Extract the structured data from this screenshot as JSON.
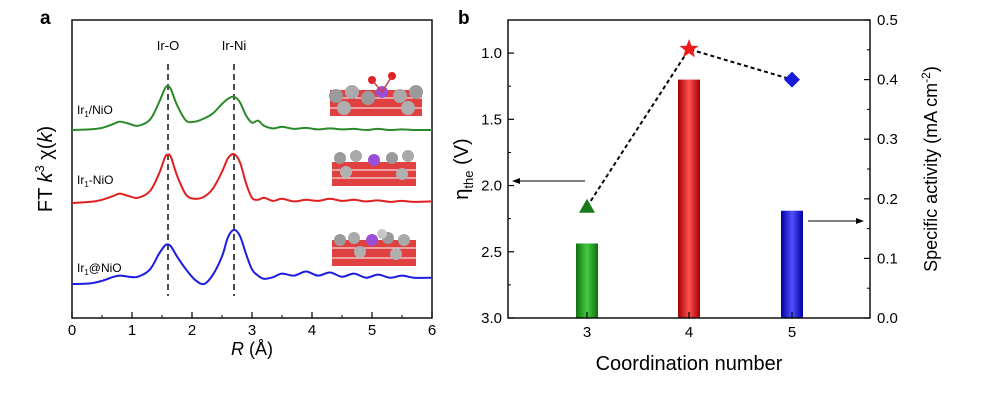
{
  "chart_data": [
    {
      "panel": "a",
      "type": "line",
      "title": "",
      "xlabel_italic": "R",
      "xlabel_unit": " (Å)",
      "ylabel_pre": "FT ",
      "ylabel_k": "k",
      "ylabel_exp": "3",
      "ylabel_chi": " χ(",
      "ylabel_post": ")",
      "xlim": [
        0,
        6
      ],
      "xticks": [
        "0",
        "1",
        "2",
        "3",
        "4",
        "5",
        "6"
      ],
      "reference_lines": [
        {
          "label": "Ir-O",
          "x": 1.6
        },
        {
          "label": "Ir-Ni",
          "x": 2.7
        }
      ],
      "series": [
        {
          "name_pre": "Ir",
          "name_sub": "1",
          "name_post": "/NiO",
          "color": "#2a8a2a",
          "x": [
            0.0,
            0.3,
            0.5,
            0.7,
            0.8,
            0.95,
            1.1,
            1.3,
            1.45,
            1.55,
            1.6,
            1.65,
            1.75,
            1.9,
            2.05,
            2.2,
            2.35,
            2.5,
            2.6,
            2.7,
            2.8,
            2.9,
            3.0,
            3.1,
            3.2,
            3.35,
            3.5,
            3.7,
            3.9,
            4.1,
            4.3,
            4.5,
            4.7,
            4.9,
            5.1,
            5.3,
            5.5,
            5.7,
            6.0
          ],
          "y": [
            0.02,
            0.03,
            0.06,
            0.14,
            0.18,
            0.14,
            0.1,
            0.22,
            0.55,
            0.82,
            0.86,
            0.8,
            0.5,
            0.2,
            0.18,
            0.24,
            0.34,
            0.52,
            0.62,
            0.66,
            0.55,
            0.3,
            0.16,
            0.2,
            0.1,
            0.05,
            0.08,
            0.04,
            0.06,
            0.03,
            0.05,
            0.03,
            0.04,
            0.02,
            0.04,
            0.02,
            0.03,
            0.02,
            0.02
          ]
        },
        {
          "name_pre": "Ir",
          "name_sub": "1",
          "name_post": "-NiO",
          "color": "#e02020",
          "x": [
            0.0,
            0.3,
            0.5,
            0.7,
            0.8,
            0.95,
            1.1,
            1.3,
            1.45,
            1.55,
            1.6,
            1.65,
            1.75,
            1.9,
            2.05,
            2.2,
            2.35,
            2.5,
            2.6,
            2.7,
            2.8,
            2.9,
            3.0,
            3.1,
            3.2,
            3.35,
            3.5,
            3.7,
            3.9,
            4.1,
            4.3,
            4.5,
            4.7,
            4.9,
            5.1,
            5.3,
            5.5,
            5.7,
            6.0
          ],
          "y": [
            0.02,
            0.04,
            0.08,
            0.16,
            0.2,
            0.15,
            0.12,
            0.25,
            0.58,
            0.9,
            0.95,
            0.9,
            0.55,
            0.18,
            0.1,
            0.14,
            0.3,
            0.62,
            0.88,
            0.96,
            0.8,
            0.4,
            0.12,
            0.08,
            0.12,
            0.06,
            0.1,
            0.05,
            0.08,
            0.06,
            0.1,
            0.06,
            0.08,
            0.05,
            0.07,
            0.04,
            0.06,
            0.04,
            0.05
          ]
        },
        {
          "name_pre": "Ir",
          "name_sub": "1",
          "name_post": "@NiO",
          "color": "#1c1ce0",
          "x": [
            0.0,
            0.3,
            0.5,
            0.7,
            0.8,
            0.95,
            1.1,
            1.3,
            1.45,
            1.55,
            1.6,
            1.65,
            1.75,
            1.9,
            2.05,
            2.2,
            2.35,
            2.5,
            2.6,
            2.7,
            2.8,
            2.9,
            3.0,
            3.1,
            3.2,
            3.35,
            3.5,
            3.7,
            3.9,
            4.1,
            4.3,
            4.5,
            4.7,
            4.9,
            5.1,
            5.3,
            5.5,
            5.7,
            6.0
          ],
          "y": [
            0.02,
            0.03,
            0.08,
            0.16,
            0.18,
            0.16,
            0.16,
            0.3,
            0.6,
            0.76,
            0.78,
            0.74,
            0.55,
            0.3,
            0.1,
            0.02,
            0.2,
            0.55,
            0.92,
            1.06,
            0.94,
            0.6,
            0.3,
            0.18,
            0.12,
            0.15,
            0.22,
            0.18,
            0.26,
            0.18,
            0.24,
            0.16,
            0.22,
            0.14,
            0.2,
            0.14,
            0.18,
            0.14,
            0.14
          ]
        }
      ]
    },
    {
      "panel": "b",
      "type": "bar",
      "title": "",
      "xlabel": "Coordination number",
      "ylabel_left_pre": "η",
      "ylabel_left_sub": "the",
      "ylabel_left_post": " (V)",
      "ylabel_right": "Specific activity (mA cm",
      "ylabel_right_sup": "-2",
      "ylabel_right_post": ")",
      "categories": [
        "3",
        "4",
        "5"
      ],
      "ylim_left_inverted": [
        0.75,
        3.0
      ],
      "yticks_left": [
        "1.0",
        "1.5",
        "2.0",
        "2.5",
        "3.0"
      ],
      "ylim_right": [
        0.0,
        0.5
      ],
      "yticks_right": [
        "0.0",
        "0.1",
        "0.2",
        "0.3",
        "0.4",
        "0.5"
      ],
      "bars": {
        "name": "Specific activity",
        "axis": "right",
        "values": [
          0.125,
          0.4,
          0.18
        ],
        "colors": [
          "#22aa22",
          "#e02020",
          "#2020e0"
        ]
      },
      "markers": {
        "name": "η_the",
        "axis": "left",
        "values": [
          2.16,
          0.97,
          1.2
        ],
        "shapes": [
          "triangle",
          "star",
          "diamond"
        ],
        "colors": [
          "#1a7a1a",
          "#ee1c1c",
          "#1a1add"
        ]
      }
    }
  ],
  "labels": {
    "panel_a": "a",
    "panel_b": "b"
  }
}
